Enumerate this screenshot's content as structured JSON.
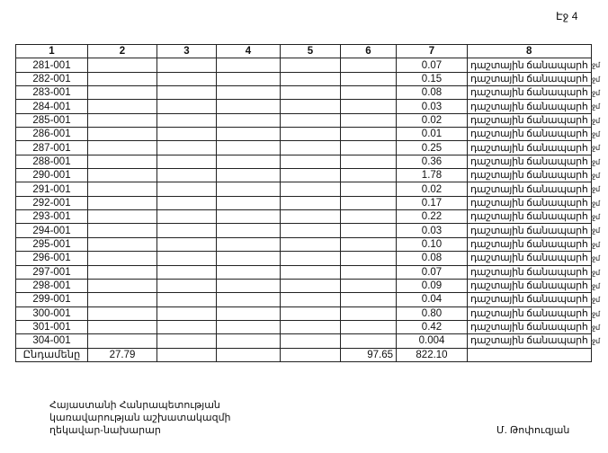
{
  "page_label": "Էջ 4",
  "table": {
    "headers": [
      "1",
      "2",
      "3",
      "4",
      "5",
      "6",
      "7",
      "8"
    ],
    "rows": [
      {
        "code": "281-001",
        "value": "0.07",
        "type": "դաշտային ճանապարհ",
        "trail": "ջմ"
      },
      {
        "code": "282-001",
        "value": "0.15",
        "type": "դաշտային ճանապարհ",
        "trail": "ջմ"
      },
      {
        "code": "283-001",
        "value": "0.08",
        "type": "դաշտային ճանապարհ",
        "trail": "ջմ"
      },
      {
        "code": "284-001",
        "value": "0.03",
        "type": "դաշտային ճանապարհ",
        "trail": "ջմ"
      },
      {
        "code": "285-001",
        "value": "0.02",
        "type": "դաշտային ճանապարհ",
        "trail": "ջմ"
      },
      {
        "code": "286-001",
        "value": "0.01",
        "type": "դաշտային ճանապարհ",
        "trail": "ջմ"
      },
      {
        "code": "287-001",
        "value": "0.25",
        "type": "դաշտային ճանապարհ",
        "trail": "ջմ"
      },
      {
        "code": "288-001",
        "value": "0.36",
        "type": "դաշտային ճանապարհ",
        "trail": "ջմ"
      },
      {
        "code": "290-001",
        "value": "1.78",
        "type": "դաշտային ճանապարհ",
        "trail": "ջմ"
      },
      {
        "code": "291-001",
        "value": "0.02",
        "type": "դաշտային ճանապարհ",
        "trail": "ջմ"
      },
      {
        "code": "292-001",
        "value": "0.17",
        "type": "դաշտային ճանապարհ",
        "trail": "ջմ"
      },
      {
        "code": "293-001",
        "value": "0.22",
        "type": "դաշտային ճանապարհ",
        "trail": "ջմ"
      },
      {
        "code": "294-001",
        "value": "0.03",
        "type": "դաշտային ճանապարհ",
        "trail": "ջմ"
      },
      {
        "code": "295-001",
        "value": "0.10",
        "type": "դաշտային ճանապարհ",
        "trail": "ջմ"
      },
      {
        "code": "296-001",
        "value": "0.08",
        "type": "դաշտային ճանապարհ",
        "trail": "ջմ"
      },
      {
        "code": "297-001",
        "value": "0.07",
        "type": "դաշտային ճանապարհ",
        "trail": "ջմ"
      },
      {
        "code": "298-001",
        "value": "0.09",
        "type": "դաշտային ճանապարհ",
        "trail": "ջմ"
      },
      {
        "code": "299-001",
        "value": "0.04",
        "type": "դաշտային ճանապարհ",
        "trail": "ջմ"
      },
      {
        "code": "300-001",
        "value": "0.80",
        "type": "դաշտային ճանապարհ",
        "trail": "ջմ"
      },
      {
        "code": "301-001",
        "value": "0.42",
        "type": "դաշտային ճանապարհ",
        "trail": "ջմ"
      },
      {
        "code": "304-001",
        "value": "0.004",
        "type": "դաշտային ճանապարհ",
        "trail": "ջմ"
      }
    ],
    "total": {
      "label": "Ընդամենը",
      "col2": "27.79",
      "col6": "97.65",
      "col7": "822.10"
    }
  },
  "footer": {
    "lines": [
      "Հայաստանի Հանրապետության",
      "կառավարության աշխատակազմի",
      "ղեկավար-նախարար"
    ],
    "signature": "Մ. Թոփուզյան"
  }
}
